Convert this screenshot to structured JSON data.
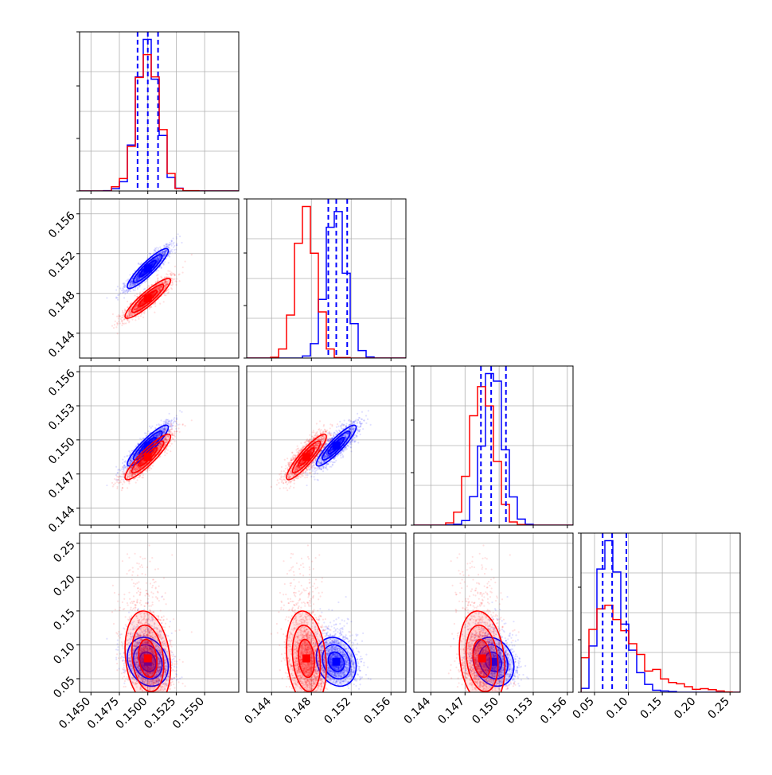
{
  "chart_data": {
    "type": "corner",
    "title": "",
    "parameters": [
      {
        "name": "",
        "range": [
          0.144,
          0.158
        ],
        "ticks": [
          0.145,
          0.1475,
          0.15,
          0.1525,
          0.155
        ],
        "tick_labels": [
          "0.1450",
          "0.1475",
          "0.1500",
          "0.1525",
          "0.1550"
        ]
      },
      {
        "name": "",
        "range": [
          0.1415,
          0.1575
        ],
        "ticks": [
          0.144,
          0.148,
          0.152,
          0.156
        ],
        "tick_labels": [
          "0.144",
          "0.148",
          "0.152",
          "0.156"
        ]
      },
      {
        "name": "",
        "range": [
          0.1425,
          0.1565
        ],
        "ticks": [
          0.144,
          0.147,
          0.15,
          0.153,
          0.156
        ],
        "tick_labels": [
          "0.144",
          "0.147",
          "0.150",
          "0.153",
          "0.156"
        ]
      },
      {
        "name": "",
        "range": [
          0.03,
          0.265
        ],
        "ticks": [
          0.05,
          0.1,
          0.15,
          0.2,
          0.25
        ],
        "tick_labels": [
          "0.05",
          "0.10",
          "0.15",
          "0.20",
          "0.25"
        ]
      }
    ],
    "series": [
      {
        "color": "#0000ff",
        "means": [
          0.15,
          0.1505,
          0.1495,
          0.075
        ],
        "sds": [
          0.0009,
          0.001,
          0.0009,
          0.018
        ],
        "skew": [
          false,
          false,
          false,
          true
        ]
      },
      {
        "color": "#ff0000",
        "means": [
          0.15,
          0.1475,
          0.1485,
          0.08
        ],
        "sds": [
          0.001,
          0.001,
          0.001,
          0.035
        ],
        "skew": [
          false,
          false,
          false,
          true
        ]
      }
    ],
    "correlations": {
      "0-1": 0.9,
      "0-2": 0.9,
      "1-2": 0.9,
      "0-3": -0.2,
      "1-3": -0.2,
      "2-3": -0.2
    },
    "quantile_lines": {
      "color": "#0000ff",
      "values": [
        [
          0.1491,
          0.15,
          0.1509
        ],
        [
          0.1497,
          0.1505,
          0.1516
        ],
        [
          0.1484,
          0.1493,
          0.1506
        ],
        [
          0.062,
          0.076,
          0.097
        ]
      ]
    },
    "grid": true,
    "legend": "none"
  }
}
